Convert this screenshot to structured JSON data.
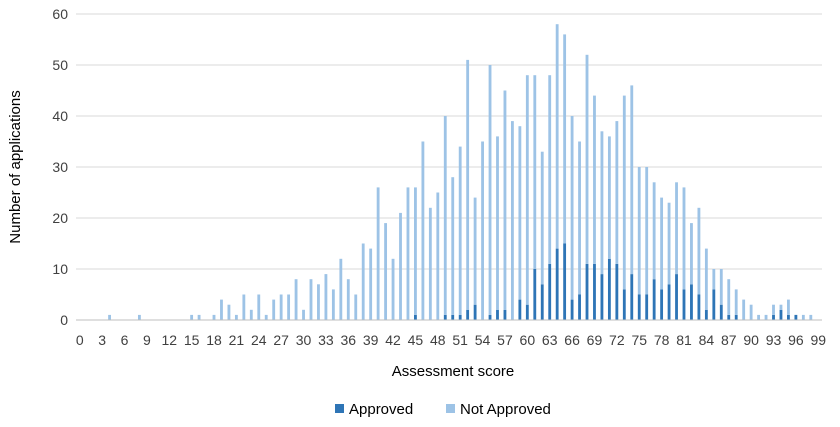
{
  "chart_data": {
    "type": "bar",
    "stacked": true,
    "title": "",
    "xlabel": "Assessment score",
    "ylabel": "Number of applications",
    "ylim": [
      0,
      60
    ],
    "yticks": [
      0,
      10,
      20,
      30,
      40,
      50,
      60
    ],
    "xticks": [
      0,
      3,
      6,
      9,
      12,
      15,
      18,
      21,
      24,
      27,
      30,
      33,
      36,
      39,
      42,
      45,
      48,
      51,
      54,
      57,
      60,
      63,
      66,
      69,
      72,
      75,
      78,
      81,
      84,
      87,
      90,
      93,
      96,
      99
    ],
    "grid": "horizontal",
    "legend_position": "bottom",
    "x": [
      0,
      1,
      2,
      3,
      4,
      5,
      6,
      7,
      8,
      9,
      10,
      11,
      12,
      13,
      14,
      15,
      16,
      17,
      18,
      19,
      20,
      21,
      22,
      23,
      24,
      25,
      26,
      27,
      28,
      29,
      30,
      31,
      32,
      33,
      34,
      35,
      36,
      37,
      38,
      39,
      40,
      41,
      42,
      43,
      44,
      45,
      46,
      47,
      48,
      49,
      50,
      51,
      52,
      53,
      54,
      55,
      56,
      57,
      58,
      59,
      60,
      61,
      62,
      63,
      64,
      65,
      66,
      67,
      68,
      69,
      70,
      71,
      72,
      73,
      74,
      75,
      76,
      77,
      78,
      79,
      80,
      81,
      82,
      83,
      84,
      85,
      86,
      87,
      88,
      89,
      90,
      91,
      92,
      93,
      94,
      95,
      96,
      97,
      98,
      99
    ],
    "series": [
      {
        "name": "Approved",
        "color": "#2e75b6",
        "values": [
          0,
          0,
          0,
          0,
          0,
          0,
          0,
          0,
          0,
          0,
          0,
          0,
          0,
          0,
          0,
          0,
          0,
          0,
          0,
          0,
          0,
          0,
          0,
          0,
          0,
          0,
          0,
          0,
          0,
          0,
          0,
          0,
          0,
          0,
          0,
          0,
          0,
          0,
          0,
          0,
          0,
          0,
          0,
          0,
          0,
          1,
          0,
          0,
          0,
          1,
          1,
          1,
          2,
          3,
          0,
          1,
          2,
          2,
          0,
          4,
          3,
          10,
          7,
          11,
          14,
          15,
          4,
          5,
          11,
          11,
          9,
          12,
          11,
          6,
          9,
          5,
          5,
          8,
          6,
          7,
          9,
          6,
          7,
          5,
          2,
          6,
          3,
          1,
          1,
          0,
          0,
          0,
          0,
          1,
          2,
          1,
          1,
          0,
          0,
          0
        ]
      },
      {
        "name": "Not Approved",
        "color": "#9dc3e6",
        "values": [
          0,
          0,
          0,
          0,
          1,
          0,
          0,
          0,
          1,
          0,
          0,
          0,
          0,
          0,
          0,
          1,
          1,
          0,
          1,
          4,
          3,
          1,
          5,
          2,
          5,
          1,
          4,
          5,
          5,
          8,
          2,
          8,
          7,
          9,
          6,
          12,
          8,
          5,
          15,
          14,
          26,
          19,
          12,
          21,
          26,
          25,
          35,
          22,
          25,
          39,
          27,
          33,
          49,
          21,
          35,
          49,
          34,
          43,
          39,
          34,
          45,
          38,
          26,
          37,
          44,
          41,
          36,
          30,
          41,
          33,
          28,
          24,
          28,
          38,
          37,
          25,
          25,
          19,
          18,
          16,
          18,
          20,
          12,
          17,
          12,
          4,
          7,
          7,
          5,
          4,
          3,
          1,
          1,
          2,
          1,
          3,
          0,
          1,
          1,
          0
        ]
      }
    ]
  }
}
